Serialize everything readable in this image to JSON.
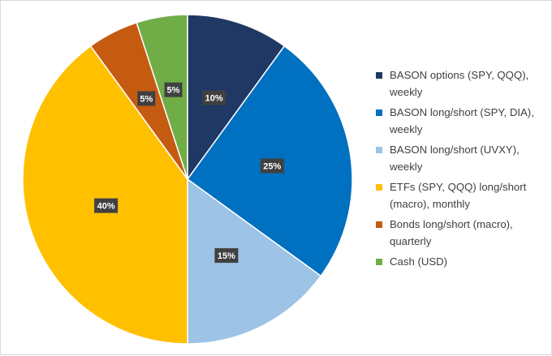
{
  "chart_data": {
    "type": "pie",
    "title": "",
    "legend_position": "right",
    "slices": [
      {
        "label": "BASON options (SPY, QQQ), weekly",
        "value": 10,
        "display": "10%",
        "color": "#1f3864"
      },
      {
        "label": "BASON long/short (SPY, DIA), weekly",
        "value": 25,
        "display": "25%",
        "color": "#0070c0"
      },
      {
        "label": "BASON long/short (UVXY), weekly",
        "value": 15,
        "display": "15%",
        "color": "#9dc3e6"
      },
      {
        "label": "ETFs (SPY, QQQ) long/short (macro), monthly",
        "value": 40,
        "display": "40%",
        "color": "#ffc000"
      },
      {
        "label": "Bonds long/short (macro), quarterly",
        "value": 5,
        "display": "5%",
        "color": "#c55a11"
      },
      {
        "label": "Cash (USD)",
        "value": 5,
        "display": "5%",
        "color": "#70ad47"
      }
    ]
  }
}
